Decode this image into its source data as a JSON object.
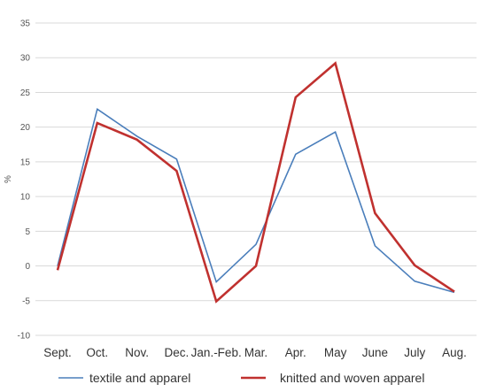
{
  "chart_data": {
    "type": "line",
    "title": "",
    "xlabel": "",
    "ylabel": "%",
    "ylim": [
      -10,
      35
    ],
    "yticks": [
      -10,
      -5,
      0,
      5,
      10,
      15,
      20,
      25,
      30,
      35
    ],
    "grid": true,
    "legend_position": "bottom",
    "categories": [
      "Sept.",
      "Oct.",
      "Nov.",
      "Dec.",
      "Jan.-Feb.",
      "Mar.",
      "Apr.",
      "May",
      "June",
      "July",
      "Aug."
    ],
    "series": [
      {
        "name": "textile and apparel",
        "color": "#4a7ebb",
        "values": [
          0.0,
          22.6,
          18.7,
          15.4,
          -2.3,
          3.1,
          16.1,
          19.3,
          2.9,
          -2.2,
          -3.8
        ]
      },
      {
        "name": "knitted and woven apparel",
        "color": "#c0312f",
        "values": [
          -0.6,
          20.6,
          18.2,
          13.7,
          -5.1,
          0.0,
          24.3,
          29.2,
          7.6,
          0.1,
          -3.7
        ]
      }
    ]
  }
}
